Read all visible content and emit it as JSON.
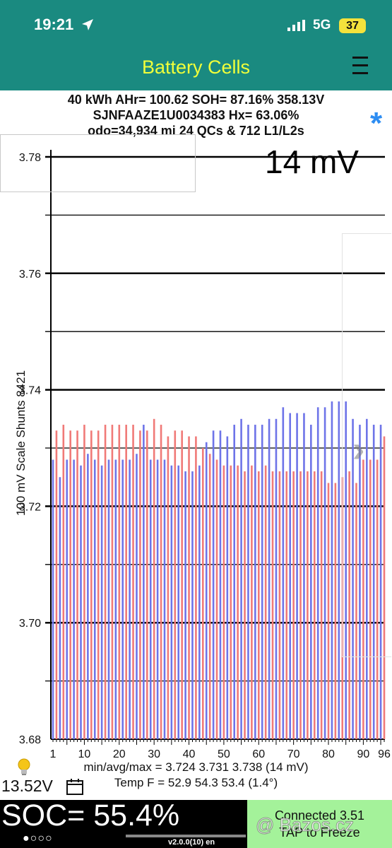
{
  "status": {
    "time": "19:21",
    "network": "5G",
    "battery": "37"
  },
  "app": {
    "title": "Battery Cells"
  },
  "info": {
    "line1": "40 kWh  AHr= 100.62  SOH= 87.16%   358.13V",
    "line2": "SJNFAAZE1U0034383   Hx= 63.06%",
    "line3": "odo=34,934 mi 24 QCs & 712 L1/L2s"
  },
  "spread_label": "14 mV",
  "axis": {
    "left_label": "100 mV Scale   Shunts 8421"
  },
  "stats": {
    "minavgmax": "min/avg/max = 3.724  3.731  3.738  (14 mV)",
    "temp": "Temp F = 52.9  54.3  53.4  (1.4°)"
  },
  "aux_voltage": "13.52V",
  "soc": {
    "text": "SOC= 55.4%",
    "page_dots": "●○○○"
  },
  "version": "v2.0.0(10) en",
  "connection": {
    "line1": "Connected 3.51",
    "line2": "TAP to Freeze"
  },
  "watermark": "@ Bazos.cz",
  "colors": {
    "bar_even": "#f07a78",
    "bar_odd": "#6e74e8",
    "header": "#1a8a80",
    "title": "#f0ff3a",
    "connected": "#a4f29a"
  },
  "chart_data": {
    "type": "bar",
    "ylim": [
      3.68,
      3.78
    ],
    "yticks": [
      "3.78",
      "3.76",
      "3.74",
      "3.72",
      "3.70",
      "3.68"
    ],
    "xticks": [
      "1",
      "10",
      "20",
      "30",
      "40",
      "50",
      "60",
      "70",
      "80",
      "90",
      "96"
    ],
    "cells": [
      3.728,
      3.733,
      3.725,
      3.734,
      3.728,
      3.733,
      3.728,
      3.733,
      3.727,
      3.734,
      3.729,
      3.733,
      3.728,
      3.733,
      3.727,
      3.734,
      3.728,
      3.734,
      3.728,
      3.734,
      3.728,
      3.734,
      3.728,
      3.734,
      3.729,
      3.733,
      3.734,
      3.733,
      3.728,
      3.735,
      3.728,
      3.734,
      3.728,
      3.732,
      3.727,
      3.733,
      3.727,
      3.733,
      3.726,
      3.732,
      3.726,
      3.732,
      3.727,
      3.73,
      3.731,
      3.729,
      3.733,
      3.728,
      3.733,
      3.727,
      3.732,
      3.727,
      3.734,
      3.727,
      3.735,
      3.726,
      3.734,
      3.727,
      3.734,
      3.726,
      3.734,
      3.727,
      3.735,
      3.726,
      3.735,
      3.726,
      3.737,
      3.726,
      3.736,
      3.726,
      3.736,
      3.726,
      3.736,
      3.726,
      3.734,
      3.726,
      3.737,
      3.726,
      3.737,
      3.724,
      3.738,
      3.724,
      3.738,
      3.725,
      3.738,
      3.726,
      3.735,
      3.724,
      3.734,
      3.728,
      3.735,
      3.728,
      3.734,
      3.728,
      3.734,
      3.732
    ]
  }
}
